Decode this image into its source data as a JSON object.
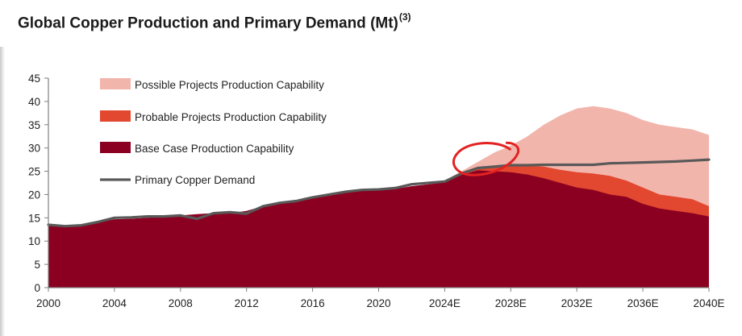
{
  "title": {
    "text": "Global Copper Production and Primary Demand (Mt)",
    "footnote": "(3)"
  },
  "chart_data": {
    "type": "area",
    "x_unit": "year",
    "xlim": [
      2000,
      2040
    ],
    "ylim": [
      0,
      45
    ],
    "y_ticks": [
      0,
      5,
      10,
      15,
      20,
      25,
      30,
      35,
      40,
      45
    ],
    "x_ticks": [
      {
        "x": 2000,
        "label": "2000"
      },
      {
        "x": 2004,
        "label": "2004"
      },
      {
        "x": 2008,
        "label": "2008"
      },
      {
        "x": 2012,
        "label": "2012"
      },
      {
        "x": 2016,
        "label": "2016"
      },
      {
        "x": 2020,
        "label": "2020"
      },
      {
        "x": 2024,
        "label": "2024E"
      },
      {
        "x": 2028,
        "label": "2028E"
      },
      {
        "x": 2032,
        "label": "2032E"
      },
      {
        "x": 2036,
        "label": "2036E"
      },
      {
        "x": 2040,
        "label": "2040E"
      }
    ],
    "grid": false,
    "legend_position": "top-left",
    "series": [
      {
        "name": "Possible Projects Production Capability",
        "kind": "area",
        "color": "#f2b5ab",
        "points": [
          [
            2024,
            23.0
          ],
          [
            2025,
            25.0
          ],
          [
            2026,
            27.0
          ],
          [
            2027,
            29.0
          ],
          [
            2028,
            30.5
          ],
          [
            2029,
            32.5
          ],
          [
            2030,
            35.0
          ],
          [
            2031,
            37.0
          ],
          [
            2032,
            38.5
          ],
          [
            2033,
            39.0
          ],
          [
            2034,
            38.5
          ],
          [
            2035,
            37.5
          ],
          [
            2036,
            36.0
          ],
          [
            2037,
            35.0
          ],
          [
            2038,
            34.5
          ],
          [
            2039,
            34.0
          ],
          [
            2040,
            32.8
          ]
        ]
      },
      {
        "name": "Probable Projects Production Capability",
        "kind": "area",
        "color": "#e2472f",
        "points": [
          [
            2024,
            23.0
          ],
          [
            2025,
            24.5
          ],
          [
            2026,
            25.5
          ],
          [
            2027,
            26.0
          ],
          [
            2028,
            26.3
          ],
          [
            2029,
            26.2
          ],
          [
            2030,
            26.0
          ],
          [
            2031,
            25.3
          ],
          [
            2032,
            24.8
          ],
          [
            2033,
            24.5
          ],
          [
            2034,
            24.0
          ],
          [
            2035,
            23.0
          ],
          [
            2036,
            21.5
          ],
          [
            2037,
            20.0
          ],
          [
            2038,
            19.5
          ],
          [
            2039,
            19.0
          ],
          [
            2040,
            17.5
          ]
        ]
      },
      {
        "name": "Base Case Production Capability",
        "kind": "area",
        "color": "#8b0020",
        "points": [
          [
            2000,
            13.3
          ],
          [
            2001,
            13.3
          ],
          [
            2002,
            13.3
          ],
          [
            2003,
            14.0
          ],
          [
            2004,
            14.7
          ],
          [
            2005,
            14.8
          ],
          [
            2006,
            15.0
          ],
          [
            2007,
            15.2
          ],
          [
            2008,
            15.5
          ],
          [
            2009,
            15.8
          ],
          [
            2010,
            16.0
          ],
          [
            2011,
            16.0
          ],
          [
            2012,
            16.5
          ],
          [
            2013,
            17.5
          ],
          [
            2014,
            18.3
          ],
          [
            2015,
            18.8
          ],
          [
            2016,
            19.5
          ],
          [
            2017,
            19.8
          ],
          [
            2018,
            20.5
          ],
          [
            2019,
            20.8
          ],
          [
            2020,
            20.9
          ],
          [
            2021,
            21.2
          ],
          [
            2022,
            21.8
          ],
          [
            2023,
            22.2
          ],
          [
            2024,
            22.6
          ],
          [
            2025,
            24.2
          ],
          [
            2026,
            25.2
          ],
          [
            2027,
            25.0
          ],
          [
            2028,
            24.8
          ],
          [
            2029,
            24.3
          ],
          [
            2030,
            23.5
          ],
          [
            2031,
            22.5
          ],
          [
            2032,
            21.5
          ],
          [
            2033,
            21.0
          ],
          [
            2034,
            20.0
          ],
          [
            2035,
            19.5
          ],
          [
            2036,
            18.0
          ],
          [
            2037,
            17.0
          ],
          [
            2038,
            16.5
          ],
          [
            2039,
            16.0
          ],
          [
            2040,
            15.3
          ]
        ]
      },
      {
        "name": "Primary Copper Demand",
        "kind": "line",
        "color": "#595959",
        "points": [
          [
            2000,
            13.5
          ],
          [
            2001,
            13.2
          ],
          [
            2002,
            13.4
          ],
          [
            2003,
            14.1
          ],
          [
            2004,
            15.0
          ],
          [
            2005,
            15.1
          ],
          [
            2006,
            15.3
          ],
          [
            2007,
            15.3
          ],
          [
            2008,
            15.5
          ],
          [
            2009,
            14.8
          ],
          [
            2010,
            16.0
          ],
          [
            2011,
            16.2
          ],
          [
            2012,
            15.9
          ],
          [
            2013,
            17.5
          ],
          [
            2014,
            18.2
          ],
          [
            2015,
            18.6
          ],
          [
            2016,
            19.4
          ],
          [
            2017,
            20.0
          ],
          [
            2018,
            20.6
          ],
          [
            2019,
            21.0
          ],
          [
            2020,
            21.1
          ],
          [
            2021,
            21.4
          ],
          [
            2022,
            22.2
          ],
          [
            2023,
            22.5
          ],
          [
            2024,
            22.8
          ],
          [
            2025,
            24.5
          ],
          [
            2026,
            25.7
          ],
          [
            2027,
            26.0
          ],
          [
            2028,
            26.3
          ],
          [
            2029,
            26.3
          ],
          [
            2030,
            26.4
          ],
          [
            2031,
            26.4
          ],
          [
            2032,
            26.4
          ],
          [
            2033,
            26.4
          ],
          [
            2034,
            26.7
          ],
          [
            2035,
            26.8
          ],
          [
            2036,
            26.9
          ],
          [
            2037,
            27.0
          ],
          [
            2038,
            27.1
          ],
          [
            2039,
            27.3
          ],
          [
            2040,
            27.5
          ]
        ]
      }
    ],
    "annotation": {
      "type": "hand-drawn circle",
      "color": "#e32222",
      "around_x": 2026
    }
  }
}
